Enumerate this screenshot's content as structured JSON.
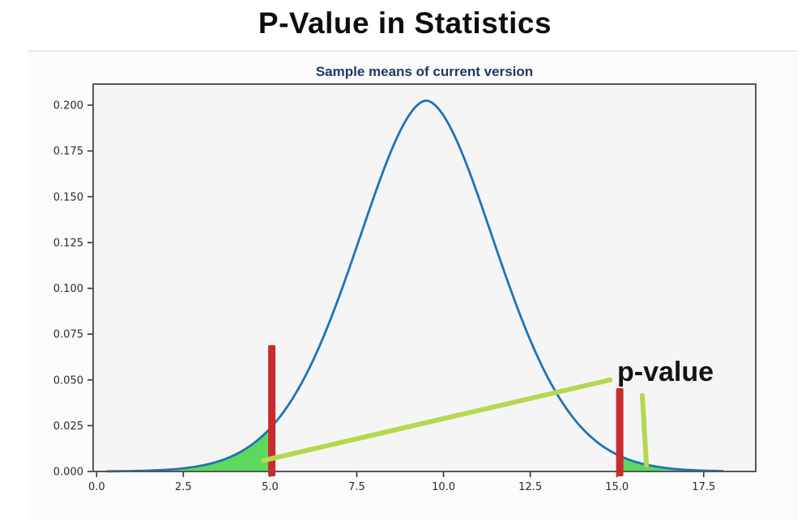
{
  "page": {
    "title": "P-Value in Statistics"
  },
  "chart_data": {
    "type": "line",
    "title": "Sample means of current version",
    "title_color": "#1f3864",
    "xlabel": "",
    "ylabel": "",
    "grid": false,
    "legend": null,
    "xlim": [
      -0.1,
      19.0
    ],
    "ylim": [
      0,
      0.2115
    ],
    "x_ticks": [
      "0.0",
      "2.5",
      "5.0",
      "7.5",
      "10.0",
      "12.5",
      "15.0",
      "17.5"
    ],
    "x_tick_values": [
      0,
      2.5,
      5,
      7.5,
      10,
      12.5,
      15,
      17.5
    ],
    "y_ticks": [
      "0.000",
      "0.025",
      "0.050",
      "0.075",
      "0.100",
      "0.125",
      "0.150",
      "0.175",
      "0.200"
    ],
    "y_tick_values": [
      0,
      0.025,
      0.05,
      0.075,
      0.1,
      0.125,
      0.15,
      0.175,
      0.2
    ],
    "curve": {
      "name": "sampling-distribution-density",
      "color": "#1f72b8",
      "stroke_width": 2.8,
      "mean": 9.5,
      "sigma": 2.0,
      "peak": 0.2025,
      "shape_exponent": 1.8,
      "x_start": 0.3,
      "x_end": 18.05
    },
    "shaded_tails": {
      "color": "#5cd95c",
      "left": {
        "from": 0.3,
        "to": 5.05
      },
      "right": {
        "from": 15.08,
        "to": 18.05
      }
    },
    "critical_bars": {
      "color": "#cb2a2e",
      "bars": [
        {
          "x": 5.05,
          "top": 0.069
        },
        {
          "x": 15.08,
          "top": 0.0455
        }
      ]
    },
    "annotation": {
      "label": "p-value",
      "label_color": "#131313",
      "line_color": "#b7d74d",
      "lines": [
        {
          "x1": 4.81,
          "y1": 0.006,
          "x2": 14.8,
          "y2": 0.05
        },
        {
          "x1": 15.73,
          "y1": 0.0415,
          "x2": 15.85,
          "y2": 0.0035
        }
      ]
    },
    "spine_color": "#55575c",
    "plot_bg": "#f5f5f6"
  }
}
